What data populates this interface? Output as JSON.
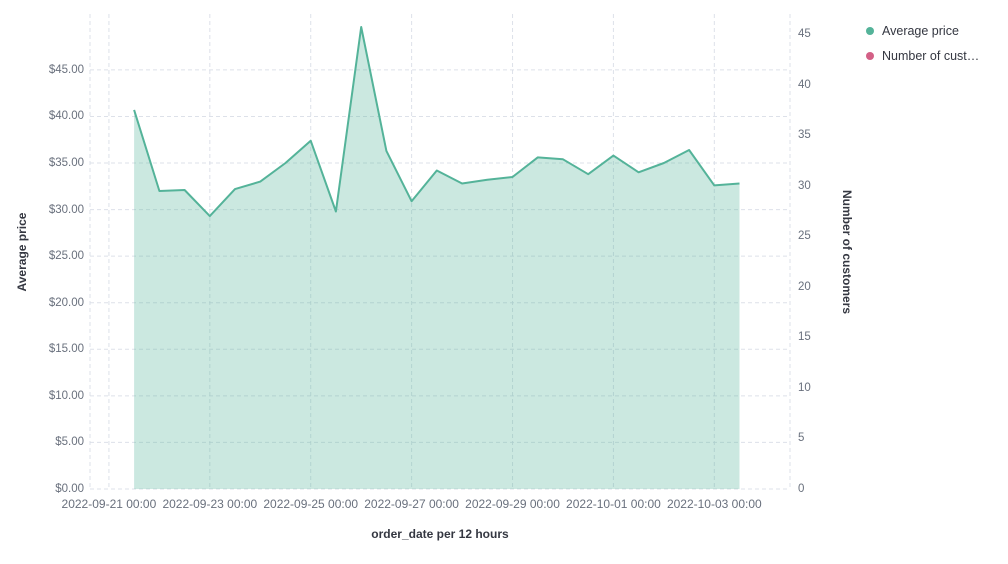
{
  "page": {
    "background": "#ffffff"
  },
  "legend": {
    "items": [
      {
        "label": "Average price",
        "color": "#54b399"
      },
      {
        "label": "Number of cust…",
        "color": "#d36086"
      }
    ]
  },
  "chart_data": {
    "type": "area",
    "title": "",
    "xlabel": "order_date per 12 hours",
    "ylabel_left": "Average price",
    "ylabel_right": "Number of customers",
    "x_interval": "12 hours",
    "grid": true,
    "legend_position": "top-right",
    "x": [
      "2022-09-21 12:00",
      "2022-09-22 00:00",
      "2022-09-22 12:00",
      "2022-09-23 00:00",
      "2022-09-23 12:00",
      "2022-09-24 00:00",
      "2022-09-24 12:00",
      "2022-09-25 00:00",
      "2022-09-25 12:00",
      "2022-09-26 00:00",
      "2022-09-26 12:00",
      "2022-09-27 00:00",
      "2022-09-27 12:00",
      "2022-09-28 00:00",
      "2022-09-28 12:00",
      "2022-09-29 00:00",
      "2022-09-29 12:00",
      "2022-09-30 00:00",
      "2022-09-30 12:00",
      "2022-10-01 00:00",
      "2022-10-01 12:00",
      "2022-10-02 00:00",
      "2022-10-02 12:00",
      "2022-10-03 00:00",
      "2022-10-03 12:00"
    ],
    "series": [
      {
        "name": "Average price",
        "axis": "left",
        "color": "#54b399",
        "fill_opacity": 0.3,
        "values": [
          40.7,
          32.0,
          32.1,
          29.3,
          32.2,
          33.0,
          35.0,
          37.4,
          29.8,
          49.6,
          36.3,
          30.9,
          34.2,
          32.8,
          33.2,
          33.5,
          35.6,
          35.4,
          33.8,
          35.8,
          34.0,
          35.0,
          36.4,
          32.6,
          32.8
        ]
      },
      {
        "name": "Number of customers",
        "axis": "right",
        "color": "#d36086",
        "fill_opacity": 0.3,
        "values": []
      }
    ],
    "left_axis": {
      "tick_labels": [
        "$0.00",
        "$5.00",
        "$10.00",
        "$15.00",
        "$20.00",
        "$25.00",
        "$30.00",
        "$35.00",
        "$40.00",
        "$45.00"
      ],
      "tick_values": [
        0,
        5,
        10,
        15,
        20,
        25,
        30,
        35,
        40,
        45
      ],
      "max": 51
    },
    "right_axis": {
      "tick_labels": [
        "0",
        "5",
        "10",
        "15",
        "20",
        "25",
        "30",
        "35",
        "40",
        "45"
      ],
      "tick_values": [
        0,
        5,
        10,
        15,
        20,
        25,
        30,
        35,
        40,
        45
      ],
      "max": 47
    },
    "x_ticks": [
      {
        "label": "2022-09-21 00:00",
        "unit": 0
      },
      {
        "label": "2022-09-23 00:00",
        "unit": 4
      },
      {
        "label": "2022-09-25 00:00",
        "unit": 8
      },
      {
        "label": "2022-09-27 00:00",
        "unit": 12
      },
      {
        "label": "2022-09-29 00:00",
        "unit": 16
      },
      {
        "label": "2022-10-01 00:00",
        "unit": 20
      },
      {
        "label": "2022-10-03 00:00",
        "unit": 24
      }
    ],
    "x_domain": [
      -0.75,
      27
    ]
  }
}
